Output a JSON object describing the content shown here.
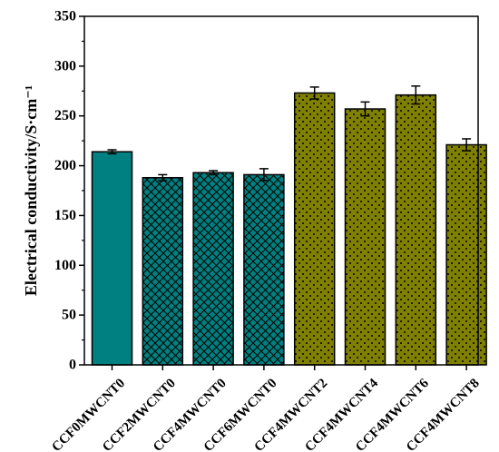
{
  "chart_data": {
    "type": "bar",
    "categories": [
      "CCF0MWCNT0",
      "CCF2MWCNT0",
      "CCF4MWCNT0",
      "CCF6MWCNT0",
      "CCF4MWCNT2",
      "CCF4MWCNT4",
      "CCF4MWCNT6",
      "CCF4MWCNT8"
    ],
    "values": [
      214,
      188,
      193,
      191,
      273,
      257,
      271,
      221
    ],
    "errors": [
      2,
      3,
      2,
      6,
      6,
      7,
      9,
      6
    ],
    "bar_colors": [
      "#008080",
      "#008080",
      "#008080",
      "#008080",
      "#808000",
      "#808000",
      "#808000",
      "#808000"
    ],
    "bar_patterns": [
      "solid",
      "crosshatch",
      "crosshatch",
      "crosshatch",
      "dots",
      "dots",
      "dots",
      "dots"
    ],
    "title": "",
    "xlabel": "",
    "ylabel": "Electrical conductivity/S·cm⁻¹",
    "ylim": [
      0,
      350
    ],
    "yticks": [
      "0",
      "50",
      "100",
      "150",
      "200",
      "250",
      "300",
      "350"
    ],
    "grid": false,
    "legend": "none"
  }
}
